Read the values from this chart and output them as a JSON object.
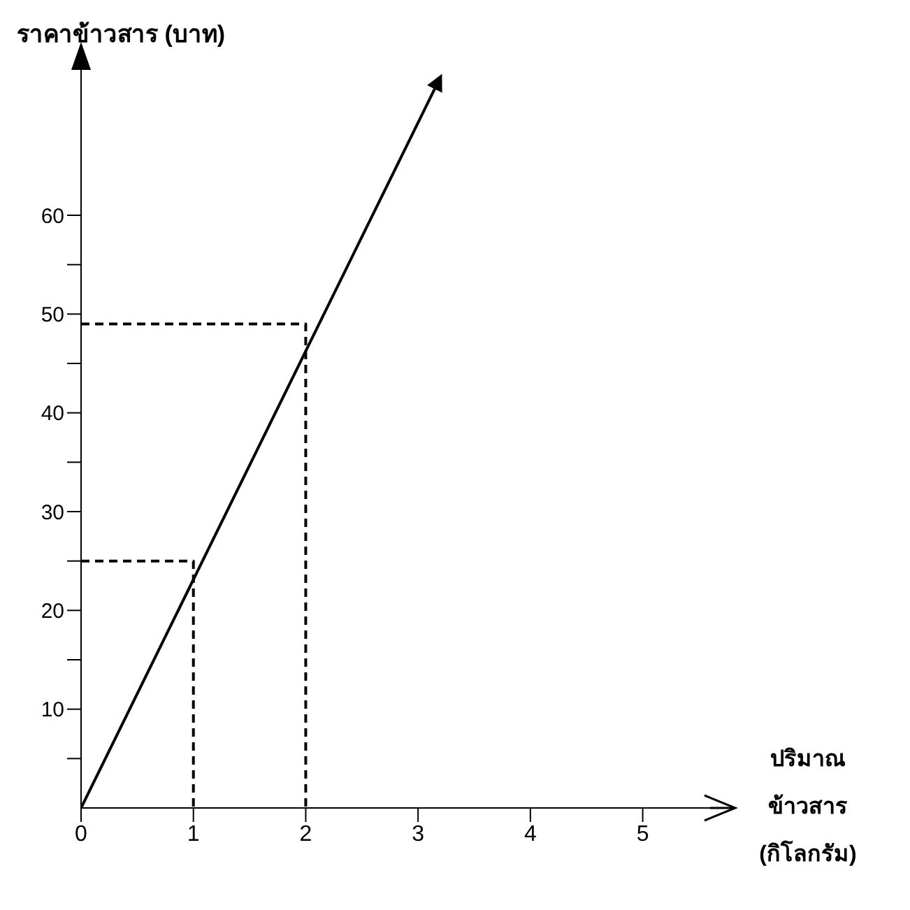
{
  "chart_data": {
    "type": "line",
    "ylabel": "ราคาข้าวสาร (บาท)",
    "xlabel": "ปริมาณ ข้าวสาร (กิโลกรัม)",
    "xlim": [
      0,
      5.6
    ],
    "ylim": [
      0,
      75
    ],
    "xticks": [
      0,
      1,
      2,
      3,
      4,
      5
    ],
    "yticks": [
      {
        "value": 5,
        "label": null
      },
      10,
      {
        "value": 15,
        "label": null
      },
      20,
      {
        "value": 25,
        "label": null
      },
      30,
      {
        "value": 35,
        "label": null
      },
      40,
      {
        "value": 45,
        "label": null
      },
      50,
      {
        "value": 55,
        "label": null
      },
      60
    ],
    "grid": false,
    "marker": "none",
    "series": [
      {
        "color": "#000000",
        "x": [
          0,
          3.2
        ],
        "values": [
          0,
          74
        ],
        "line_style": "solid"
      },
      {
        "color": "#000000",
        "x": [
          0,
          1,
          1
        ],
        "values": [
          25,
          25,
          0
        ],
        "line_style": "dashed"
      },
      {
        "color": "#000000",
        "x": [
          0,
          2,
          2
        ],
        "values": [
          49,
          49,
          0
        ],
        "line_style": "dashed"
      }
    ]
  }
}
